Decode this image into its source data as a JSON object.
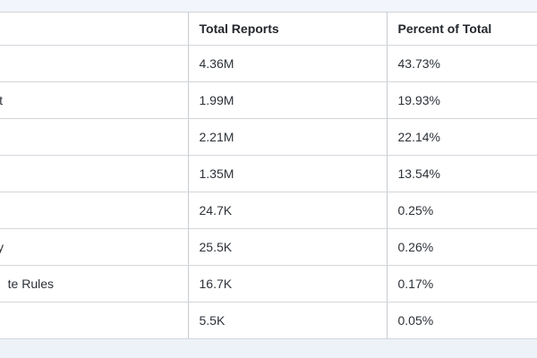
{
  "table": {
    "columns": [
      {
        "label": ""
      },
      {
        "label": "Total Reports"
      },
      {
        "label": "Percent of Total"
      }
    ],
    "rows": [
      {
        "label_fragment": "",
        "total": "4.36M",
        "percent": "43.73%"
      },
      {
        "label_fragment": "t",
        "total": "1.99M",
        "percent": "19.93%"
      },
      {
        "label_fragment": "",
        "total": "2.21M",
        "percent": "22.14%"
      },
      {
        "label_fragment": "",
        "total": "1.35M",
        "percent": "13.54%"
      },
      {
        "label_fragment": "",
        "total": "24.7K",
        "percent": "0.25%"
      },
      {
        "label_fragment": "y",
        "total": "25.5K",
        "percent": "0.26%"
      },
      {
        "label_fragment": "te Rules",
        "total": "16.7K",
        "percent": "0.17%"
      },
      {
        "label_fragment": "",
        "total": "5.5K",
        "percent": "0.05%"
      }
    ],
    "colors": {
      "row_background": "#ffffff",
      "top_strip_background": "#f2f6fc",
      "bottom_strip_background": "#edf2f9",
      "border": "#cfd3d9",
      "header_text": "#24282d",
      "cell_text": "#2d3238"
    }
  }
}
